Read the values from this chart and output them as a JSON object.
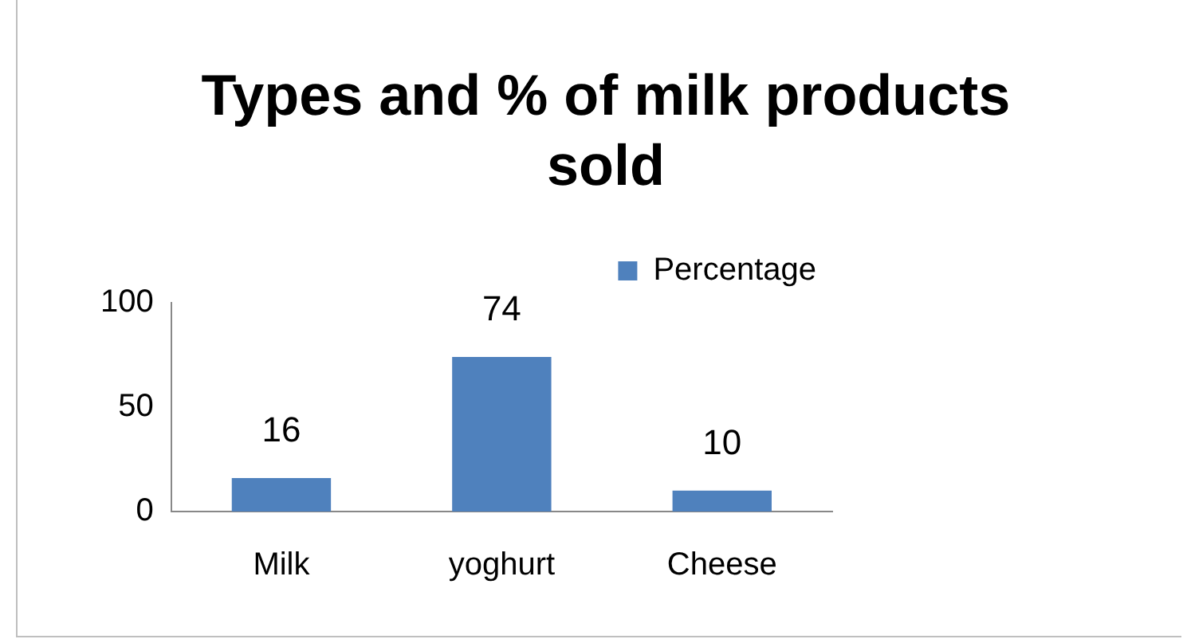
{
  "chart_data": {
    "type": "bar",
    "title": "Types and % of milk products sold",
    "categories": [
      "Milk",
      "yoghurt",
      "Cheese"
    ],
    "series": [
      {
        "name": "Percentage",
        "color": "#4f81bd",
        "values": [
          16,
          74,
          10
        ]
      }
    ],
    "ylim": [
      0,
      100
    ],
    "yticks": [
      0,
      50,
      100
    ],
    "grid": false,
    "legend": "top right",
    "data_labels": true
  }
}
